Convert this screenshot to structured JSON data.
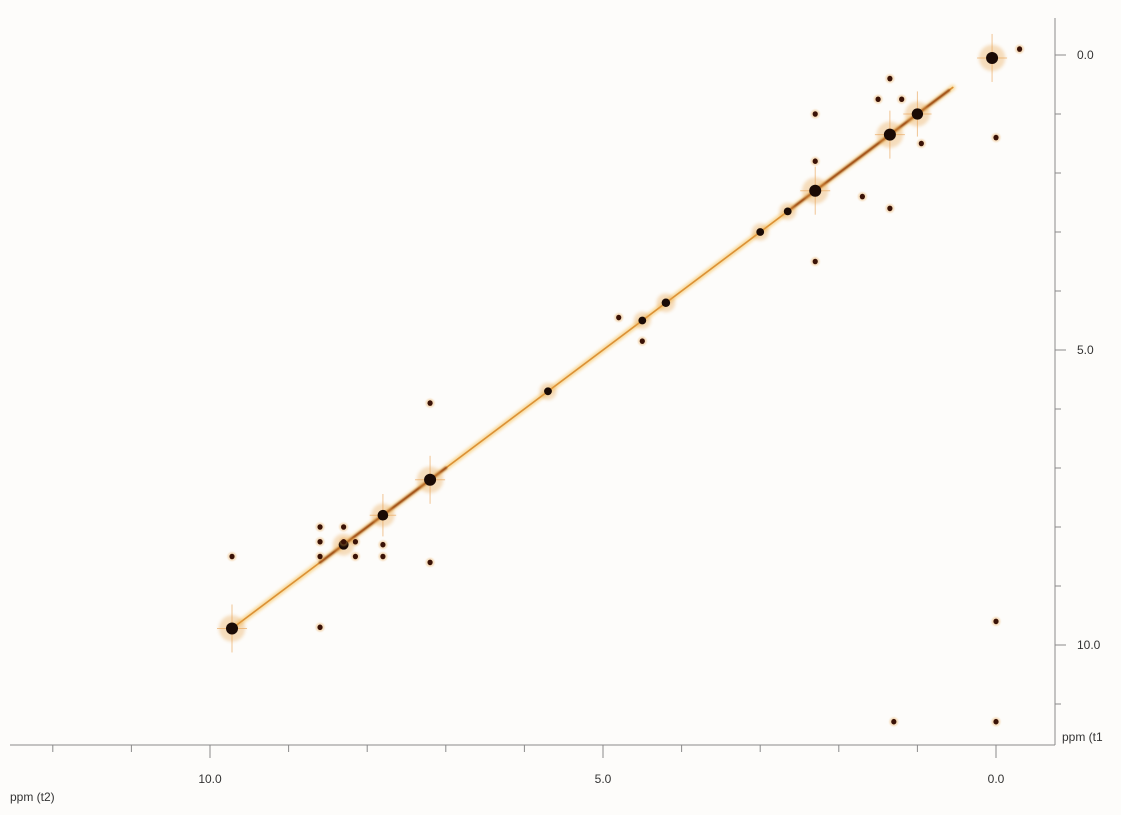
{
  "chart_data": {
    "type": "scatter",
    "title": "",
    "xlabel": "ppm (t2)",
    "ylabel": "ppm (t1",
    "x_axis_reversed": true,
    "y_axis_reversed": true,
    "xlim": [
      -0.7,
      13.0
    ],
    "ylim": [
      -0.3,
      12.2
    ],
    "x_ticks": [
      10.0,
      5.0,
      0.0
    ],
    "x_tick_labels": [
      "10.0",
      "5.0",
      "0.0"
    ],
    "y_ticks": [
      0.0,
      5.0,
      10.0
    ],
    "y_tick_labels": [
      "0.0",
      "5.0",
      "10.0"
    ],
    "grid": false,
    "diagonal": {
      "from": 9.72,
      "to": 0.55
    },
    "series": [
      {
        "kind": "diagonal-peaks",
        "color": "#1a0a05",
        "points": [
          {
            "x": 9.72,
            "y": 9.72,
            "i": 1.0
          },
          {
            "x": 8.3,
            "y": 8.3,
            "i": 0.7
          },
          {
            "x": 7.8,
            "y": 7.8,
            "i": 0.8
          },
          {
            "x": 7.2,
            "y": 7.2,
            "i": 1.0
          },
          {
            "x": 5.7,
            "y": 5.7,
            "i": 0.4
          },
          {
            "x": 4.5,
            "y": 4.5,
            "i": 0.4
          },
          {
            "x": 4.2,
            "y": 4.2,
            "i": 0.5
          },
          {
            "x": 3.0,
            "y": 3.0,
            "i": 0.4
          },
          {
            "x": 2.65,
            "y": 2.65,
            "i": 0.4
          },
          {
            "x": 2.3,
            "y": 2.3,
            "i": 1.0
          },
          {
            "x": 1.35,
            "y": 1.35,
            "i": 1.0
          },
          {
            "x": 1.0,
            "y": 1.0,
            "i": 0.9
          },
          {
            "x": 0.05,
            "y": 0.05,
            "i": 1.0
          }
        ]
      },
      {
        "kind": "cross-peaks",
        "color": "#3a1206",
        "points": [
          {
            "x": 8.6,
            "y": 8.0
          },
          {
            "x": 8.6,
            "y": 8.25
          },
          {
            "x": 8.6,
            "y": 8.5
          },
          {
            "x": 8.3,
            "y": 8.0
          },
          {
            "x": 8.3,
            "y": 8.25
          },
          {
            "x": 8.15,
            "y": 8.25
          },
          {
            "x": 8.15,
            "y": 8.5
          },
          {
            "x": 7.8,
            "y": 8.3
          },
          {
            "x": 7.8,
            "y": 8.5
          },
          {
            "x": 8.6,
            "y": 9.7
          },
          {
            "x": 9.72,
            "y": 8.5
          },
          {
            "x": 7.2,
            "y": 5.9
          },
          {
            "x": 7.2,
            "y": 8.6
          },
          {
            "x": 4.5,
            "y": 4.85
          },
          {
            "x": 4.8,
            "y": 4.45
          },
          {
            "x": 2.3,
            "y": 1.0
          },
          {
            "x": 2.3,
            "y": 1.8
          },
          {
            "x": 2.3,
            "y": 3.5
          },
          {
            "x": 1.7,
            "y": 2.4
          },
          {
            "x": 1.2,
            "y": 0.75
          },
          {
            "x": 1.5,
            "y": 0.75
          },
          {
            "x": 1.35,
            "y": 0.4
          },
          {
            "x": 1.35,
            "y": 2.6
          },
          {
            "x": 0.95,
            "y": 1.5
          },
          {
            "x": 0.0,
            "y": 1.4
          },
          {
            "x": -0.3,
            "y": -0.1
          },
          {
            "x": 0.0,
            "y": 11.3
          },
          {
            "x": 1.3,
            "y": 11.3
          },
          {
            "x": 0.0,
            "y": 9.6
          }
        ]
      }
    ]
  }
}
